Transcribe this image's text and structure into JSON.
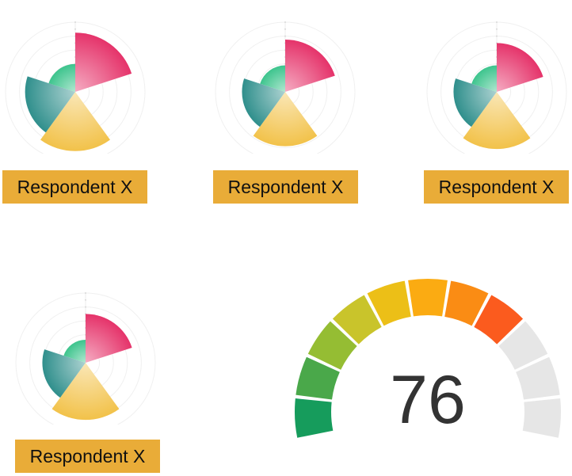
{
  "chart_data": [
    {
      "type": "polar-area",
      "label": "Respondent X",
      "segments": [
        {
          "value": 0.85,
          "start_angle": 0,
          "end_angle": 72,
          "color": "#e5336a"
        },
        {
          "value": 0.85,
          "start_angle": 144,
          "end_angle": 216,
          "color": "#f2c24a"
        },
        {
          "value": 0.72,
          "start_angle": 216,
          "end_angle": 288,
          "color": "#2f8f8c"
        },
        {
          "value": 0.4,
          "start_angle": 288,
          "end_angle": 360,
          "color": "#3dc48d"
        }
      ]
    },
    {
      "type": "polar-area",
      "label": "Respondent X",
      "segments": [
        {
          "value": 0.75,
          "start_angle": 0,
          "end_angle": 72,
          "color": "#e5336a"
        },
        {
          "value": 0.78,
          "start_angle": 144,
          "end_angle": 216,
          "color": "#f2c24a"
        },
        {
          "value": 0.62,
          "start_angle": 216,
          "end_angle": 288,
          "color": "#2f8f8c"
        },
        {
          "value": 0.38,
          "start_angle": 288,
          "end_angle": 360,
          "color": "#3dc48d"
        }
      ]
    },
    {
      "type": "polar-area",
      "label": "Respondent X",
      "segments": [
        {
          "value": 0.7,
          "start_angle": 0,
          "end_angle": 72,
          "color": "#e5336a"
        },
        {
          "value": 0.82,
          "start_angle": 144,
          "end_angle": 216,
          "color": "#f2c24a"
        },
        {
          "value": 0.62,
          "start_angle": 216,
          "end_angle": 288,
          "color": "#2f8f8c"
        },
        {
          "value": 0.38,
          "start_angle": 288,
          "end_angle": 360,
          "color": "#3dc48d"
        }
      ]
    },
    {
      "type": "polar-area",
      "label": "Respondent X",
      "segments": [
        {
          "value": 0.7,
          "start_angle": 0,
          "end_angle": 72,
          "color": "#e5336a"
        },
        {
          "value": 0.82,
          "start_angle": 144,
          "end_angle": 216,
          "color": "#f2c24a"
        },
        {
          "value": 0.62,
          "start_angle": 216,
          "end_angle": 288,
          "color": "#2f8f8c"
        },
        {
          "value": 0.33,
          "start_angle": 288,
          "end_angle": 360,
          "color": "#3dc48d"
        }
      ]
    },
    {
      "type": "gauge",
      "value": 76,
      "min": 0,
      "max": 100,
      "segment_colors": [
        "#169c5c",
        "#4aa84a",
        "#95bd33",
        "#c9c42b",
        "#ecbf17",
        "#fbab12",
        "#fa8c14",
        "#fb5b1e",
        "#e6e6e6",
        "#e6e6e6",
        "#e6e6e6"
      ]
    }
  ]
}
